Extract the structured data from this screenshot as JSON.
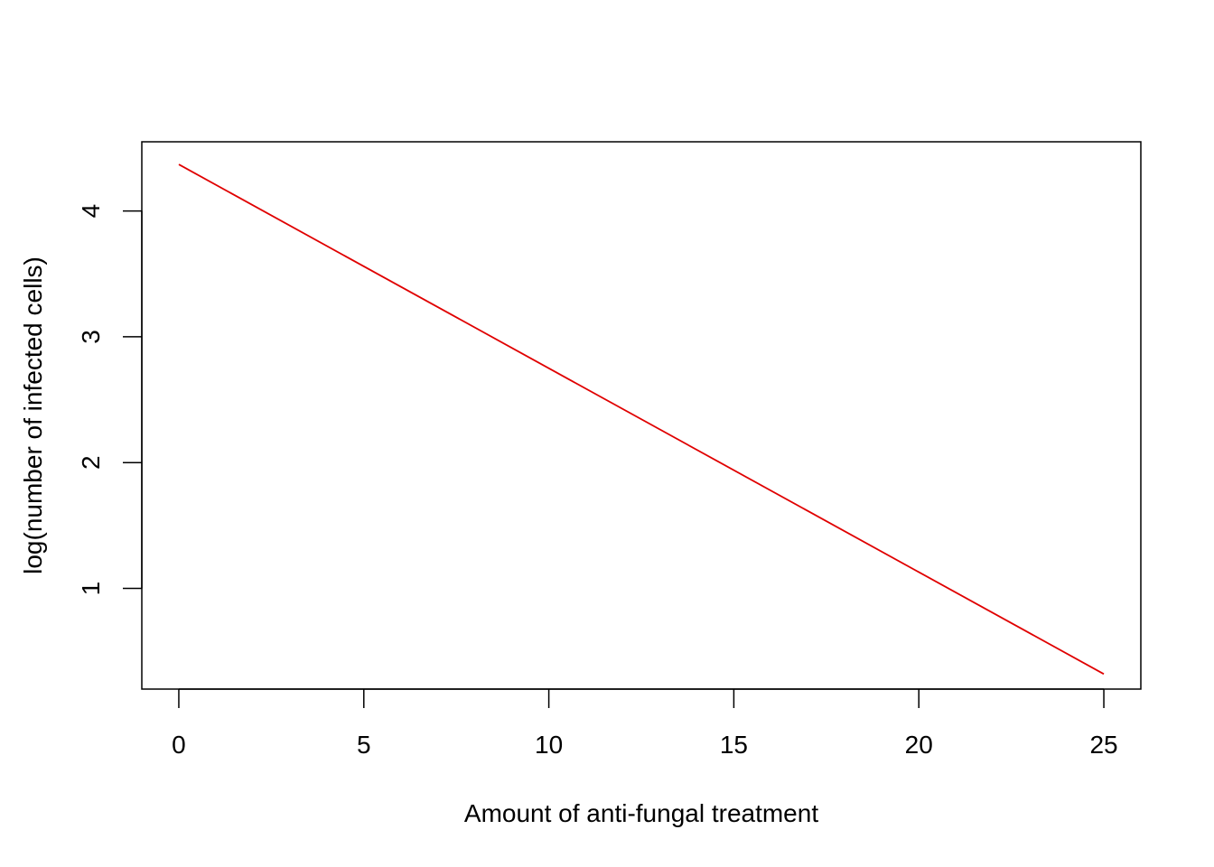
{
  "chart_data": {
    "type": "line",
    "title": "",
    "xlabel": "Amount of anti-fungal treatment",
    "ylabel": "log(number of infected cells)",
    "xlim": [
      -1,
      26
    ],
    "ylim": [
      0.2,
      4.55
    ],
    "x_ticks": [
      0,
      5,
      10,
      15,
      20,
      25
    ],
    "y_ticks": [
      1,
      2,
      3,
      4
    ],
    "grid": false,
    "legend": "none",
    "series": [
      {
        "color": "#e00000",
        "x": [
          0,
          25
        ],
        "y": [
          4.37,
          0.32
        ]
      }
    ]
  }
}
